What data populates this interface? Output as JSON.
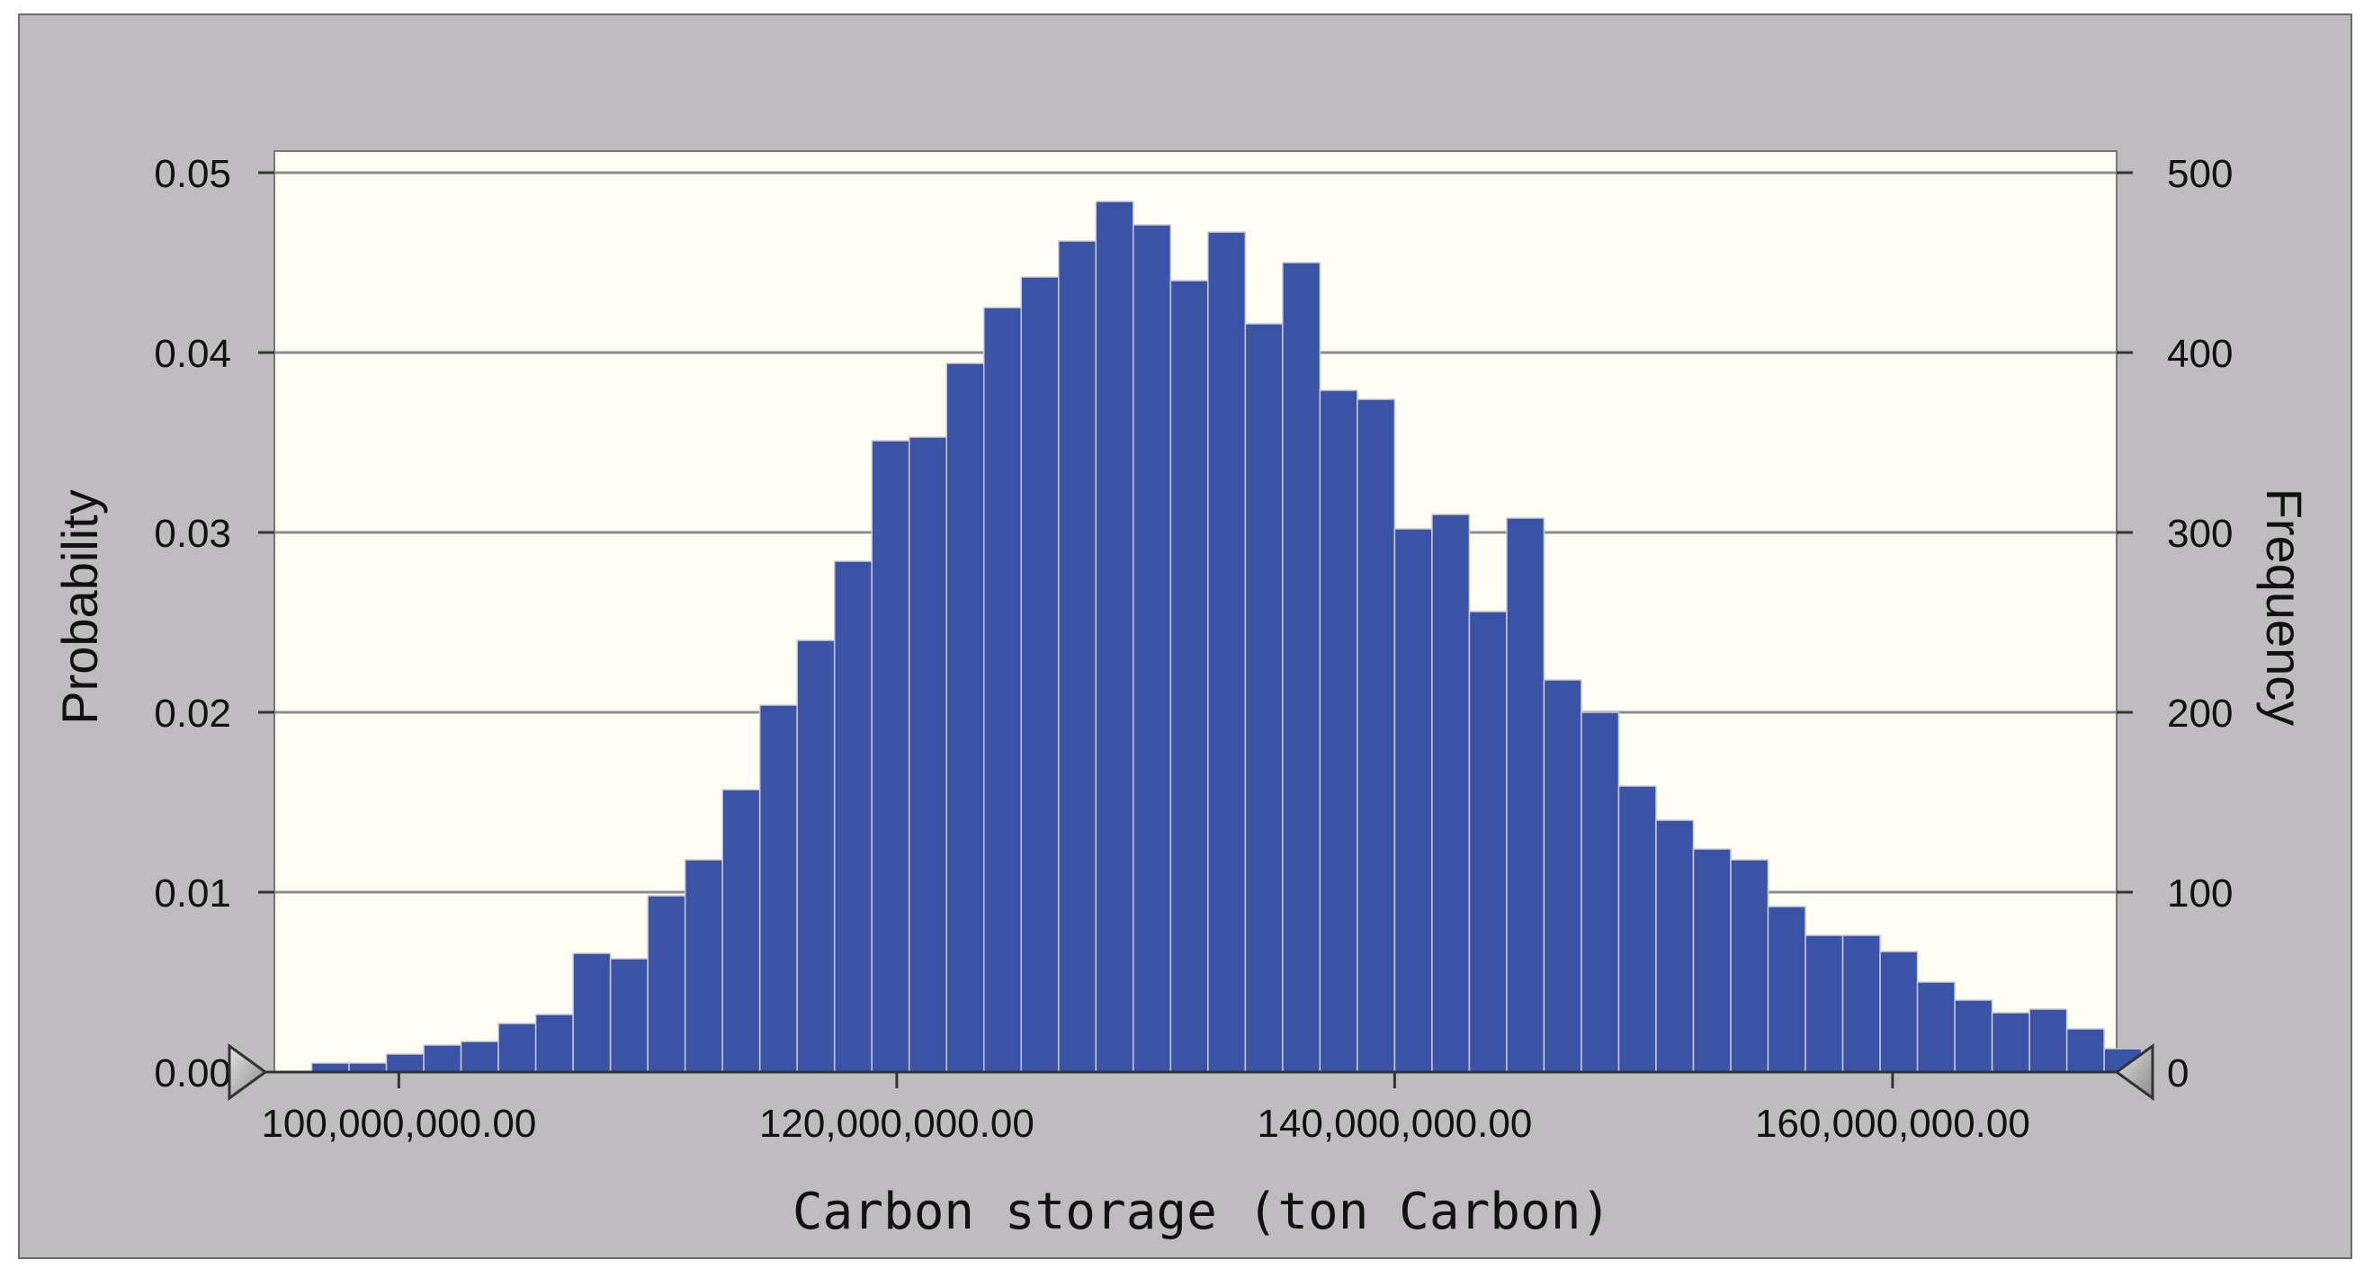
{
  "chart_data": {
    "type": "bar",
    "title": "",
    "xlabel": "Carbon storage (ton Carbon)",
    "ylabel_left": "Probability",
    "ylabel_right": "Frequency",
    "x_ticks": [
      {
        "value": 100000000,
        "label": "100,000,000.00"
      },
      {
        "value": 120000000,
        "label": "120,000,000.00"
      },
      {
        "value": 140000000,
        "label": "140,000,000.00"
      },
      {
        "value": 160000000,
        "label": "160,000,000.00"
      }
    ],
    "y_left_ticks": [
      {
        "value": 0.0,
        "label": "0.00"
      },
      {
        "value": 0.01,
        "label": "0.01"
      },
      {
        "value": 0.02,
        "label": "0.02"
      },
      {
        "value": 0.03,
        "label": "0.03"
      },
      {
        "value": 0.04,
        "label": "0.04"
      },
      {
        "value": 0.05,
        "label": "0.05"
      }
    ],
    "y_right_ticks": [
      {
        "value": 0,
        "label": "0"
      },
      {
        "value": 100,
        "label": "100"
      },
      {
        "value": 200,
        "label": "200"
      },
      {
        "value": 300,
        "label": "300"
      },
      {
        "value": 400,
        "label": "400"
      },
      {
        "value": 500,
        "label": "500"
      }
    ],
    "xlim": [
      95000000,
      169000000
    ],
    "ylim_left": [
      0,
      0.0512
    ],
    "ylim_right": [
      0,
      512
    ],
    "grid": "horizontal",
    "bin_width": 1500000,
    "bin_start": 96500000,
    "frequencies": [
      5,
      5,
      10,
      15,
      17,
      27,
      32,
      66,
      63,
      98,
      118,
      157,
      204,
      240,
      284,
      351,
      353,
      394,
      425,
      442,
      462,
      484,
      471,
      440,
      467,
      416,
      450,
      379,
      374,
      302,
      310,
      256,
      308,
      218,
      200,
      159,
      140,
      124,
      118,
      92,
      76,
      76,
      67,
      50,
      40,
      33,
      35,
      24,
      13
    ],
    "bar_color": "#3a53a4",
    "plot_background": "#fefef4",
    "gridline_color": "#8c8c8c",
    "frame_color": "#bfbcbf"
  }
}
